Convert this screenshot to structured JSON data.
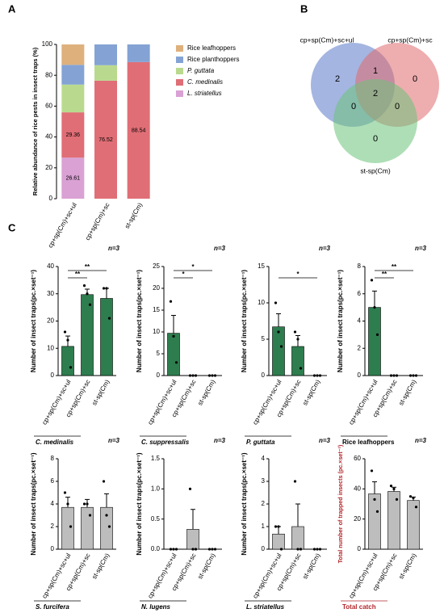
{
  "panel_labels": [
    "A",
    "B",
    "C"
  ],
  "chart_data": [
    {
      "type": "stacked_bar",
      "ylabel": "Relative abundance of rice pests in insect traps (%)",
      "categories": [
        "cp+sp(Cm)+sc+ul",
        "cp+sp(Cm)+sc",
        "st-sp(Cm)"
      ],
      "ylim": [
        0,
        100
      ],
      "yticks": [
        0,
        20,
        40,
        60,
        80,
        100
      ],
      "series": [
        {
          "name": "Rice leafhoppers",
          "color": "#deb07c",
          "italic": false,
          "values": [
            13.2,
            0,
            0
          ],
          "value_labels": [
            null,
            null,
            null
          ]
        },
        {
          "name": "Rice planthoppers",
          "color": "#84a3d4",
          "italic": false,
          "values": [
            12.8,
            13.48,
            11.46
          ],
          "value_labels": [
            null,
            null,
            null
          ]
        },
        {
          "name": "P. guttata",
          "color": "#b9da8e",
          "italic": true,
          "values": [
            18,
            10,
            0
          ],
          "value_labels": [
            null,
            null,
            null
          ]
        },
        {
          "name": "C. medinalis",
          "color": "#e06e76",
          "italic": true,
          "values": [
            29.36,
            76.52,
            88.54
          ],
          "value_labels": [
            "29.36",
            "76.52",
            "88.54"
          ]
        },
        {
          "name": "L. striatellus",
          "color": "#d9a1d4",
          "italic": true,
          "values": [
            26.61,
            0,
            0
          ],
          "value_labels": [
            "26.61",
            null,
            null
          ]
        }
      ]
    },
    {
      "type": "venn",
      "sets": [
        {
          "name": "cp+sp(Cm)+sc+ul",
          "color": "#5a78c8"
        },
        {
          "name": "cp+sp(Cm)+sc",
          "color": "#e06a6e"
        },
        {
          "name": "st-sp(Cm)",
          "color": "#6cc27a"
        }
      ],
      "regions": [
        {
          "sets": [
            0
          ],
          "value": 2
        },
        {
          "sets": [
            0,
            1
          ],
          "value": 1
        },
        {
          "sets": [
            1
          ],
          "value": 0
        },
        {
          "sets": [
            0,
            2
          ],
          "value": 0
        },
        {
          "sets": [
            0,
            1,
            2
          ],
          "value": 2
        },
        {
          "sets": [
            1,
            2
          ],
          "value": 0
        },
        {
          "sets": [
            2
          ],
          "value": 0
        }
      ]
    },
    {
      "type": "bar",
      "xlabel": "C. medinalis",
      "italic": true,
      "annotation": "n=3",
      "ylabel": "Number of insect traps(pc.×set⁻¹)",
      "categories": [
        "cp+sp(Cm)+sc+ul",
        "cp+sp(Cm)+sc",
        "st-sp(Cm)"
      ],
      "color": "#2e7d4f",
      "values": [
        10.7,
        29.7,
        28.3
      ],
      "errors": [
        3.8,
        2.0,
        3.7
      ],
      "points": [
        [
          16,
          13,
          3
        ],
        [
          33,
          30,
          26
        ],
        [
          32,
          32,
          21
        ]
      ],
      "ylim": [
        0,
        40
      ],
      "yticks": [
        0,
        10,
        20,
        30,
        40
      ],
      "significance": [
        {
          "from": 0,
          "to": 1,
          "label": "**"
        },
        {
          "from": 0,
          "to": 2,
          "label": "**"
        }
      ]
    },
    {
      "type": "bar",
      "xlabel": "C. suppressalis",
      "italic": true,
      "annotation": "n=3",
      "ylabel": "Number of insect traps(pc.×set⁻¹)",
      "categories": [
        "cp+sp(Cm)+sc+ul",
        "cp+sp(Cm)+sc",
        "st-sp(Cm)"
      ],
      "color": "#2e7d4f",
      "values": [
        9.7,
        0,
        0
      ],
      "errors": [
        4.1,
        0,
        0
      ],
      "points": [
        [
          17,
          9,
          3
        ],
        [
          0,
          0,
          0
        ],
        [
          0,
          0,
          0
        ]
      ],
      "ylim": [
        0,
        25
      ],
      "yticks": [
        0,
        5,
        10,
        15,
        20,
        25
      ],
      "significance": [
        {
          "from": 0,
          "to": 1,
          "label": "*"
        },
        {
          "from": 0,
          "to": 2,
          "label": "*"
        }
      ]
    },
    {
      "type": "bar",
      "xlabel": "P. guttata",
      "italic": true,
      "annotation": "n=3",
      "ylabel": "Number of insect traps(pc.×set⁻¹)",
      "categories": [
        "cp+sp(Cm)+sc+ul",
        "cp+sp(Cm)+sc",
        "st-sp(Cm)"
      ],
      "color": "#2e7d4f",
      "values": [
        6.7,
        4,
        0
      ],
      "errors": [
        1.8,
        1.5,
        0
      ],
      "points": [
        [
          10,
          6,
          4
        ],
        [
          6,
          5,
          1
        ],
        [
          0,
          0,
          0
        ]
      ],
      "ylim": [
        0,
        15
      ],
      "yticks": [
        0,
        5,
        10,
        15
      ],
      "significance": [
        {
          "from": 0,
          "to": 2,
          "label": "*"
        }
      ]
    },
    {
      "type": "bar",
      "xlabel": "Rice leafhoppers",
      "italic": false,
      "annotation": "n=3",
      "ylabel": "Number of insect traps(pc.×set⁻¹)",
      "categories": [
        "cp+sp(Cm)+sc+ul",
        "cp+sp(Cm)+sc",
        "st-sp(Cm)"
      ],
      "color": "#2e7d4f",
      "values": [
        5,
        0,
        0
      ],
      "errors": [
        1.2,
        0,
        0
      ],
      "points": [
        [
          7,
          5,
          3
        ],
        [
          0,
          0,
          0
        ],
        [
          0,
          0,
          0
        ]
      ],
      "ylim": [
        0,
        8
      ],
      "yticks": [
        0,
        2,
        4,
        6,
        8
      ],
      "significance": [
        {
          "from": 0,
          "to": 1,
          "label": "**"
        },
        {
          "from": 0,
          "to": 2,
          "label": "**"
        }
      ]
    },
    {
      "type": "bar",
      "xlabel": "S. furcifera",
      "italic": true,
      "annotation": "n=3",
      "ylabel": "Number of insect traps(pc.×set⁻¹)",
      "categories": [
        "cp+sp(Cm)+sc+ul",
        "cp+sp(Cm)+sc",
        "st-sp(Cm)"
      ],
      "color": "#bdbdbd",
      "values": [
        3.7,
        3.7,
        3.7
      ],
      "errors": [
        0.9,
        0.7,
        1.2
      ],
      "points": [
        [
          5,
          4,
          2
        ],
        [
          4,
          4,
          3
        ],
        [
          6,
          3,
          2
        ]
      ],
      "ylim": [
        0,
        8
      ],
      "yticks": [
        0,
        2,
        4,
        6,
        8
      ],
      "significance": []
    },
    {
      "type": "bar",
      "xlabel": "N. lugens",
      "italic": true,
      "annotation": "n=3",
      "ylabel": "Number of insect traps(pc.×set⁻¹)",
      "categories": [
        "cp+sp(Cm)+sc+ul",
        "cp+sp(Cm)+sc",
        "st-sp(Cm)"
      ],
      "color": "#bdbdbd",
      "values": [
        0,
        0.33,
        0
      ],
      "errors": [
        0,
        0.33,
        0
      ],
      "points": [
        [
          0,
          0,
          0
        ],
        [
          1,
          0,
          0
        ],
        [
          0,
          0,
          0
        ]
      ],
      "ylim": [
        0,
        1.5
      ],
      "yticks": [
        {
          "value": 0,
          "label": "0.0"
        },
        {
          "value": 0.5,
          "label": "0.5"
        },
        {
          "value": 1,
          "label": "1.0"
        },
        {
          "value": 1.5,
          "label": "1.5"
        }
      ],
      "significance": []
    },
    {
      "type": "bar",
      "xlabel": "L. striatellus",
      "italic": true,
      "annotation": "n=3",
      "ylabel": "Number of insect traps(pc.×set⁻¹)",
      "categories": [
        "cp+sp(Cm)+sc+ul",
        "cp+sp(Cm)+sc",
        "st-sp(Cm)"
      ],
      "color": "#bdbdbd",
      "values": [
        0.67,
        1,
        0
      ],
      "errors": [
        0.33,
        1,
        0
      ],
      "points": [
        [
          1,
          1,
          0
        ],
        [
          3,
          0,
          0
        ],
        [
          0,
          0,
          0
        ]
      ],
      "ylim": [
        0,
        4
      ],
      "yticks": [
        0,
        1,
        2,
        3,
        4
      ],
      "significance": []
    },
    {
      "type": "bar",
      "xlabel": "Total catch",
      "italic": false,
      "label_color": "#b3262b",
      "annotation": "n=3",
      "ylabel": "Total number of trapped insects (pc.×set⁻¹)",
      "categories": [
        "cp+sp(Cm)+sc+ul",
        "cp+sp(Cm)+sc",
        "st-sp(Cm)"
      ],
      "color": "#bdbdbd",
      "values": [
        36.7,
        38.3,
        32.3
      ],
      "errors": [
        8,
        2.8,
        2.3
      ],
      "points": [
        [
          52,
          33,
          25
        ],
        [
          42,
          40,
          33
        ],
        [
          35,
          34,
          28
        ]
      ],
      "ylim": [
        0,
        60
      ],
      "yticks": [
        0,
        20,
        40,
        60
      ],
      "significance": []
    }
  ]
}
